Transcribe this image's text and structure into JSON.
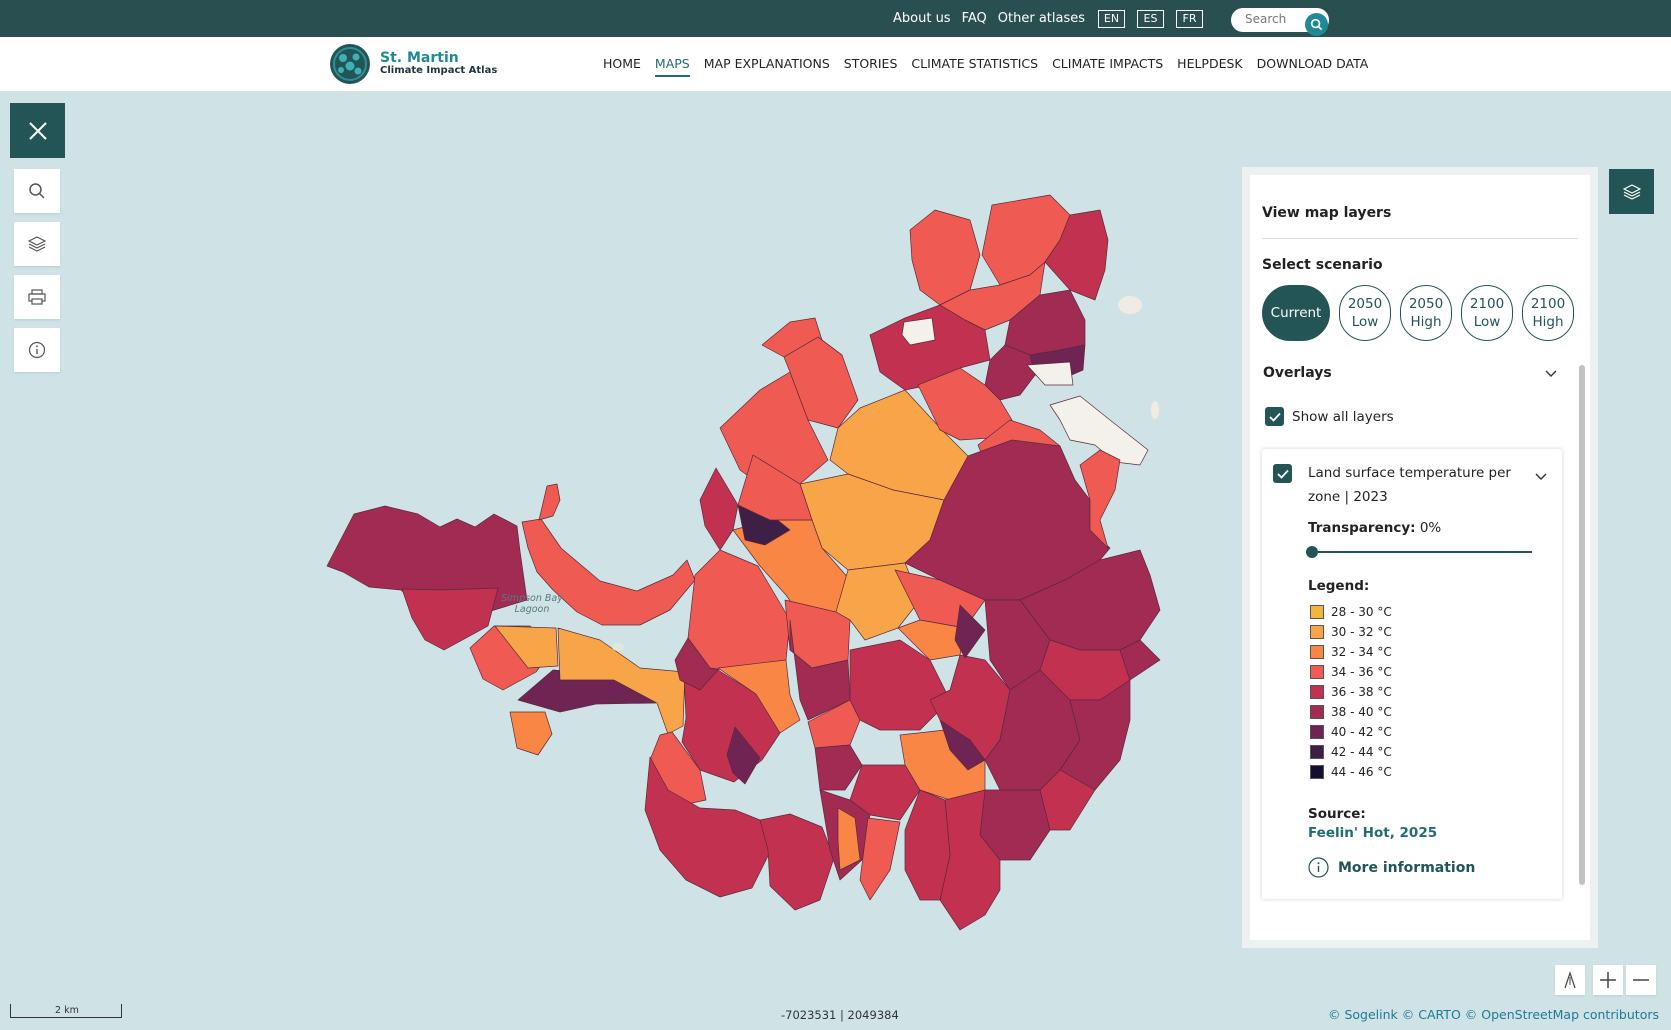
{
  "topbar": {
    "links": [
      "About us",
      "FAQ",
      "Other atlases"
    ],
    "languages": [
      "EN",
      "ES",
      "FR"
    ],
    "search_placeholder": "Search"
  },
  "brand": {
    "title": "St. Martin",
    "subtitle": "Climate Impact Atlas"
  },
  "nav": {
    "items": [
      "HOME",
      "MAPS",
      "MAP EXPLANATIONS",
      "STORIES",
      "CLIMATE STATISTICS",
      "CLIMATE IMPACTS",
      "HELPDESK",
      "DOWNLOAD DATA"
    ],
    "active": "MAPS"
  },
  "map": {
    "lagoon_label_1": "Simpson Bay",
    "lagoon_label_2": "Lagoon",
    "scale_label": "2 km",
    "coordinates": "-7023531 | 2049384",
    "attribution": {
      "a": "© Sogelink",
      "b": "© CARTO",
      "c": "© OpenStreetMap contributors"
    }
  },
  "panel": {
    "title": "View map layers",
    "scenario_label": "Select scenario",
    "scenarios": [
      {
        "line1": "Current",
        "line2": ""
      },
      {
        "line1": "2050",
        "line2": "Low"
      },
      {
        "line1": "2050",
        "line2": "High"
      },
      {
        "line1": "2100",
        "line2": "Low"
      },
      {
        "line1": "2100",
        "line2": "High"
      }
    ],
    "selected_scenario": "Current",
    "overlays_label": "Overlays",
    "show_all_label": "Show all layers",
    "layer": {
      "title": "Land surface temperature per zone | 2023",
      "transparency_label": "Transparency:",
      "transparency_value": "0%",
      "transparency_percent": 0,
      "legend_label": "Legend:",
      "legend": [
        {
          "label": "28 - 30 °C",
          "color": "#f4b53f"
        },
        {
          "label": "30 - 32 °C",
          "color": "#f8a549"
        },
        {
          "label": "32 - 34 °C",
          "color": "#f98645"
        },
        {
          "label": "34 - 36 °C",
          "color": "#ef5b52"
        },
        {
          "label": "36 - 38 °C",
          "color": "#c23150"
        },
        {
          "label": "38 - 40 °C",
          "color": "#a22b53"
        },
        {
          "label": "40 - 42 °C",
          "color": "#6f2453"
        },
        {
          "label": "42 - 44 °C",
          "color": "#3e1f45"
        },
        {
          "label": "44 - 46 °C",
          "color": "#150e30"
        }
      ],
      "source_label": "Source:",
      "source_value": "Feelin' Hot, 2025",
      "more_info_label": "More information"
    }
  },
  "colors": {
    "accent": "#235556",
    "topbar": "#2a4f51",
    "water": "#cfe3e6"
  }
}
